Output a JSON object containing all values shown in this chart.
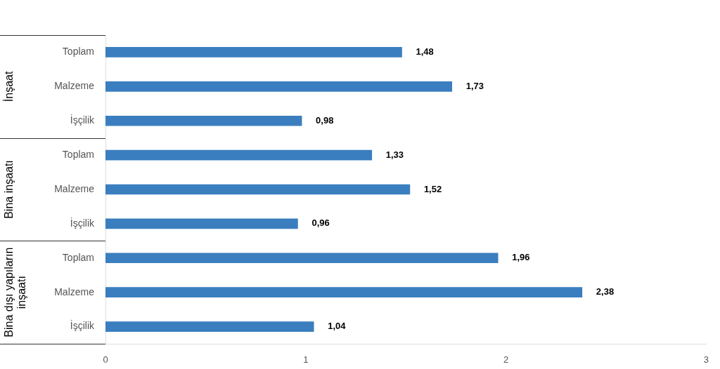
{
  "chart_data": {
    "type": "bar",
    "orientation": "horizontal",
    "categories": [
      "Toplam",
      "Malzeme",
      "İşçilik",
      "Toplam",
      "Malzeme",
      "İşçilik",
      "Toplam",
      "Malzeme",
      "İşçilik"
    ],
    "values": [
      1.48,
      1.73,
      0.98,
      1.33,
      1.52,
      0.96,
      1.96,
      2.38,
      1.04
    ],
    "value_labels": [
      "1,48",
      "1,73",
      "0,98",
      "1,33",
      "1,52",
      "0,96",
      "1,96",
      "2,38",
      "1,04"
    ],
    "color": "#3a7ebf",
    "xlim": [
      0,
      3
    ],
    "xticks": [
      0,
      1,
      2,
      3
    ],
    "grid": false,
    "legend": false,
    "annotations": [
      "İnşaat",
      "Bina inşaatı",
      "Bina dışı yapıların inşaatı"
    ]
  }
}
